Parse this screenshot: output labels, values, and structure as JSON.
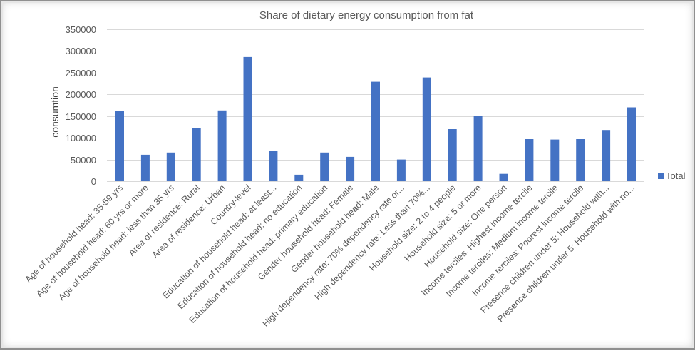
{
  "chart_data": {
    "type": "bar",
    "title": "Share of dietary energy consumption from fat",
    "ylabel": "consumtion",
    "xlabel": "",
    "ylim": [
      0,
      350000
    ],
    "yticks": [
      0,
      50000,
      100000,
      150000,
      200000,
      250000,
      300000,
      350000
    ],
    "ytick_labels": [
      "0",
      "50000",
      "100000",
      "150000",
      "200000",
      "250000",
      "300000",
      "350000"
    ],
    "grid": true,
    "legend_position": "right",
    "colors": {
      "bar": "#4472c4"
    },
    "categories": [
      "Age of household head: 35-59 yrs",
      "Age of household head: 60 yrs or more",
      "Age of household head: less than 35 yrs",
      "Area of residence: Rural",
      "Area of residence: Urban",
      "Country-level",
      "Education of household head: at least...",
      "Education of household head: no education",
      "Education of household head: primary education",
      "Gender household head: Female",
      "Gender household head: Male",
      "High dependency rate: 70% dependency rate or...",
      "High dependency rate: Less than 70%...",
      "Household size: 2 to 4 people",
      "Household size: 5 or more",
      "Household size: One person",
      "Income terciles: Highest income tercile",
      "Income terciles: Medium income tercile",
      "Income terciles: Poorest income tercile",
      "Presence children under 5: Household with...",
      "Presence children under 5: Household with no..."
    ],
    "series": [
      {
        "name": "Total",
        "values": [
          161000,
          61000,
          66000,
          123000,
          163000,
          286000,
          69000,
          15000,
          66000,
          56000,
          229000,
          50000,
          239000,
          120000,
          151000,
          17000,
          97000,
          96000,
          97000,
          118000,
          170000
        ]
      }
    ]
  }
}
